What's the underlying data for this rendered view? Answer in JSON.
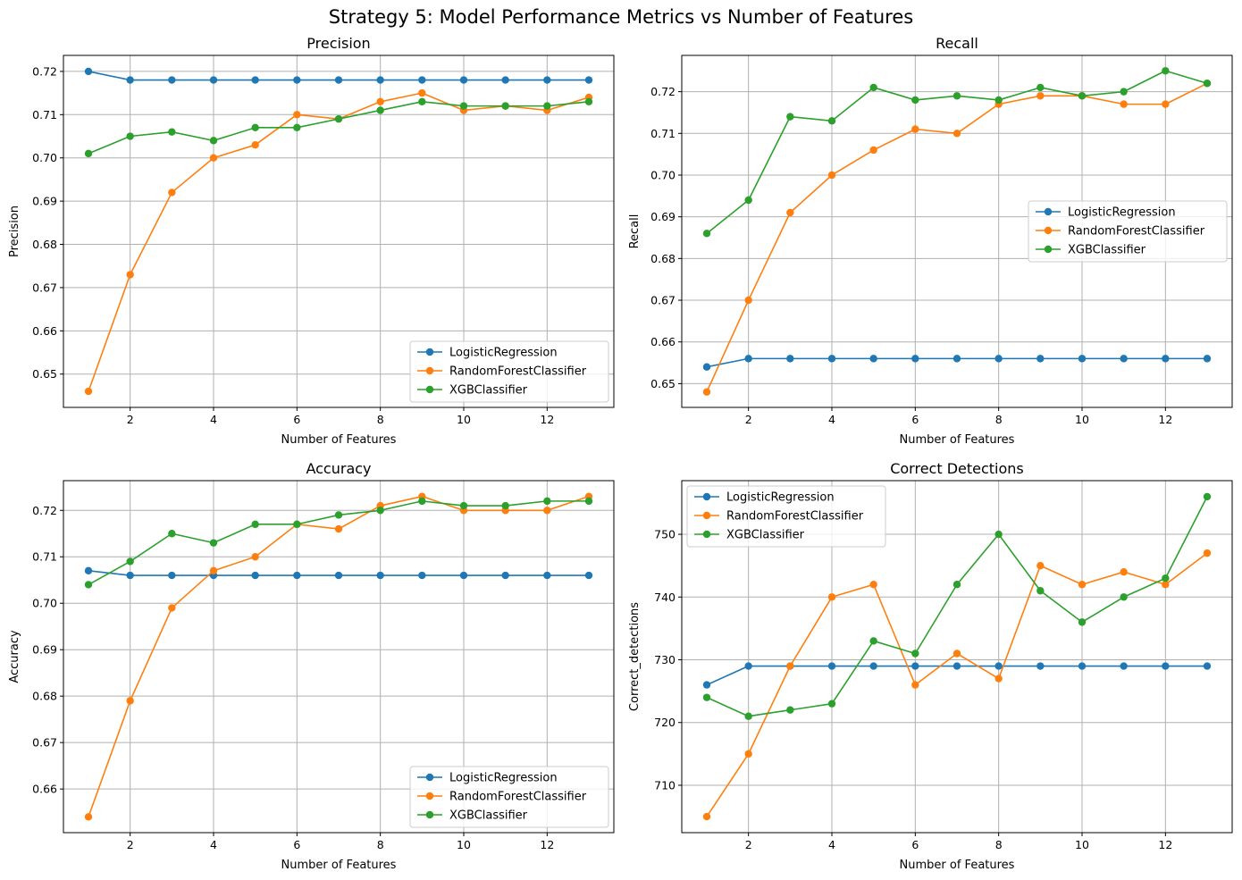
{
  "figure": {
    "suptitle": "Strategy 5: Model Performance Metrics vs Number of Features"
  },
  "colors": {
    "LogisticRegression": "#1f77b4",
    "RandomForestClassifier": "#ff7f0e",
    "XGBClassifier": "#2ca02c",
    "grid": "#b0b0b0"
  },
  "chart_data": [
    {
      "type": "line",
      "title": "Precision",
      "xlabel": "Number of Features",
      "ylabel": "Precision",
      "x": [
        1,
        2,
        3,
        4,
        5,
        6,
        7,
        8,
        9,
        10,
        11,
        12,
        13
      ],
      "xlim": [
        0.4,
        13.6
      ],
      "ylim": [
        0.6423,
        0.7237
      ],
      "xticks": [
        2,
        4,
        6,
        8,
        10,
        12
      ],
      "yticks": [
        0.65,
        0.66,
        0.67,
        0.68,
        0.69,
        0.7,
        0.71,
        0.72
      ],
      "ytick_labels": [
        "0.65",
        "0.66",
        "0.67",
        "0.68",
        "0.69",
        "0.70",
        "0.71",
        "0.72"
      ],
      "grid": true,
      "legend_loc": "lower right",
      "series": [
        {
          "name": "LogisticRegression",
          "values": [
            0.72,
            0.718,
            0.718,
            0.718,
            0.718,
            0.718,
            0.718,
            0.718,
            0.718,
            0.718,
            0.718,
            0.718,
            0.718
          ]
        },
        {
          "name": "RandomForestClassifier",
          "values": [
            0.646,
            0.673,
            0.692,
            0.7,
            0.703,
            0.71,
            0.709,
            0.713,
            0.715,
            0.711,
            0.712,
            0.711,
            0.714
          ]
        },
        {
          "name": "XGBClassifier",
          "values": [
            0.701,
            0.705,
            0.706,
            0.704,
            0.707,
            0.707,
            0.709,
            0.711,
            0.713,
            0.712,
            0.712,
            0.712,
            0.713
          ]
        }
      ]
    },
    {
      "type": "line",
      "title": "Recall",
      "xlabel": "Number of Features",
      "ylabel": "Recall",
      "x": [
        1,
        2,
        3,
        4,
        5,
        6,
        7,
        8,
        9,
        10,
        11,
        12,
        13
      ],
      "xlim": [
        0.4,
        13.6
      ],
      "ylim": [
        0.6443,
        0.7287
      ],
      "xticks": [
        2,
        4,
        6,
        8,
        10,
        12
      ],
      "yticks": [
        0.65,
        0.66,
        0.67,
        0.68,
        0.69,
        0.7,
        0.71,
        0.72
      ],
      "ytick_labels": [
        "0.65",
        "0.66",
        "0.67",
        "0.68",
        "0.69",
        "0.70",
        "0.71",
        "0.72"
      ],
      "grid": true,
      "legend_loc": "center right",
      "series": [
        {
          "name": "LogisticRegression",
          "values": [
            0.654,
            0.656,
            0.656,
            0.656,
            0.656,
            0.656,
            0.656,
            0.656,
            0.656,
            0.656,
            0.656,
            0.656,
            0.656
          ]
        },
        {
          "name": "RandomForestClassifier",
          "values": [
            0.648,
            0.67,
            0.691,
            0.7,
            0.706,
            0.711,
            0.71,
            0.717,
            0.719,
            0.719,
            0.717,
            0.717,
            0.722
          ]
        },
        {
          "name": "XGBClassifier",
          "values": [
            0.686,
            0.694,
            0.714,
            0.713,
            0.721,
            0.718,
            0.719,
            0.718,
            0.721,
            0.719,
            0.72,
            0.725,
            0.722
          ]
        }
      ]
    },
    {
      "type": "line",
      "title": "Accuracy",
      "xlabel": "Number of Features",
      "ylabel": "Accuracy",
      "x": [
        1,
        2,
        3,
        4,
        5,
        6,
        7,
        8,
        9,
        10,
        11,
        12,
        13
      ],
      "xlim": [
        0.4,
        13.6
      ],
      "ylim": [
        0.6506,
        0.7264
      ],
      "xticks": [
        2,
        4,
        6,
        8,
        10,
        12
      ],
      "yticks": [
        0.66,
        0.67,
        0.68,
        0.69,
        0.7,
        0.71,
        0.72
      ],
      "ytick_labels": [
        "0.66",
        "0.67",
        "0.68",
        "0.69",
        "0.70",
        "0.71",
        "0.72"
      ],
      "grid": true,
      "legend_loc": "lower right",
      "series": [
        {
          "name": "LogisticRegression",
          "values": [
            0.707,
            0.706,
            0.706,
            0.706,
            0.706,
            0.706,
            0.706,
            0.706,
            0.706,
            0.706,
            0.706,
            0.706,
            0.706
          ]
        },
        {
          "name": "RandomForestClassifier",
          "values": [
            0.654,
            0.679,
            0.699,
            0.707,
            0.71,
            0.717,
            0.716,
            0.721,
            0.723,
            0.72,
            0.72,
            0.72,
            0.723
          ]
        },
        {
          "name": "XGBClassifier",
          "values": [
            0.704,
            0.709,
            0.715,
            0.713,
            0.717,
            0.717,
            0.719,
            0.72,
            0.722,
            0.721,
            0.721,
            0.722,
            0.722
          ]
        }
      ]
    },
    {
      "type": "line",
      "title": "Correct Detections",
      "xlabel": "Number of Features",
      "ylabel": "Correct_detections",
      "x": [
        1,
        2,
        3,
        4,
        5,
        6,
        7,
        8,
        9,
        10,
        11,
        12,
        13
      ],
      "xlim": [
        0.4,
        13.6
      ],
      "ylim": [
        702.45,
        758.55
      ],
      "xticks": [
        2,
        4,
        6,
        8,
        10,
        12
      ],
      "yticks": [
        710,
        720,
        730,
        740,
        750
      ],
      "ytick_labels": [
        "710",
        "720",
        "730",
        "740",
        "750"
      ],
      "grid": true,
      "legend_loc": "upper left",
      "series": [
        {
          "name": "LogisticRegression",
          "values": [
            726,
            729,
            729,
            729,
            729,
            729,
            729,
            729,
            729,
            729,
            729,
            729,
            729
          ]
        },
        {
          "name": "RandomForestClassifier",
          "values": [
            705,
            715,
            729,
            740,
            742,
            726,
            731,
            727,
            745,
            742,
            744,
            742,
            747
          ]
        },
        {
          "name": "XGBClassifier",
          "values": [
            724,
            721,
            722,
            723,
            733,
            731,
            742,
            750,
            741,
            736,
            740,
            743,
            756
          ]
        }
      ]
    }
  ]
}
